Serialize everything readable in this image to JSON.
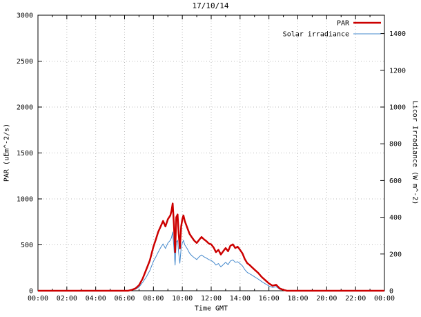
{
  "title": "17/10/14",
  "axes": {
    "x_label": "Time GMT",
    "y_left_label": "PAR (uEm^-2/s)",
    "y_right_label": "Licor Irradiance (W m^-2)",
    "x_tick_positions": [
      0,
      2,
      4,
      6,
      8,
      10,
      12,
      14,
      16,
      18,
      20,
      22,
      24
    ],
    "x_tick_labels": [
      "00:00",
      "02:00",
      "04:00",
      "06:00",
      "08:00",
      "10:00",
      "12:00",
      "14:00",
      "16:00",
      "18:00",
      "20:00",
      "22:00",
      "00:00"
    ],
    "y_left_ticks": [
      0,
      500,
      1000,
      1500,
      2000,
      2500,
      3000
    ],
    "y_right_ticks": [
      0,
      200,
      400,
      600,
      800,
      1000,
      1200,
      1400
    ]
  },
  "colors": {
    "par_line": "#cc0000",
    "solar_line": "#4488cc",
    "grid": "#bbbbbb",
    "frame": "#000000",
    "background": "#ffffff"
  },
  "chart_data": {
    "type": "line",
    "title": "17/10/14",
    "xlabel": "Time GMT",
    "ylabel": "PAR (uEm^-2/s)",
    "y2label": "Licor Irradiance (W m^-2)",
    "xlim": [
      0,
      24
    ],
    "ylim": [
      0,
      3000
    ],
    "y2lim": [
      0,
      1500
    ],
    "grid": true,
    "legend_position": "top-right",
    "x": [
      0,
      2,
      4,
      5,
      6,
      6.25,
      6.5,
      6.75,
      7,
      7.25,
      7.5,
      7.75,
      8,
      8.17,
      8.33,
      8.5,
      8.67,
      8.83,
      9,
      9.17,
      9.25,
      9.33,
      9.42,
      9.5,
      9.58,
      9.67,
      9.75,
      9.83,
      9.92,
      10,
      10.08,
      10.17,
      10.33,
      10.5,
      10.67,
      10.83,
      11,
      11.17,
      11.33,
      11.5,
      11.67,
      11.83,
      12,
      12.17,
      12.33,
      12.5,
      12.67,
      12.83,
      13,
      13.17,
      13.33,
      13.5,
      13.67,
      13.83,
      14,
      14.17,
      14.33,
      14.5,
      14.67,
      14.83,
      15,
      15.25,
      15.5,
      15.75,
      16,
      16.25,
      16.5,
      16.75,
      17,
      17.25,
      17.5,
      18,
      20,
      22,
      24
    ],
    "series": [
      {
        "name": "PAR",
        "axis": "left",
        "color": "#cc0000",
        "line_width": 2.5,
        "values": [
          0,
          0,
          0,
          0,
          0,
          0,
          10,
          25,
          60,
          130,
          230,
          330,
          480,
          560,
          640,
          700,
          760,
          700,
          780,
          820,
          870,
          950,
          720,
          420,
          800,
          830,
          620,
          460,
          700,
          780,
          820,
          760,
          690,
          620,
          580,
          545,
          520,
          555,
          585,
          560,
          540,
          515,
          505,
          470,
          420,
          445,
          395,
          430,
          465,
          430,
          490,
          505,
          465,
          480,
          445,
          405,
          345,
          300,
          280,
          255,
          230,
          195,
          150,
          115,
          80,
          55,
          65,
          25,
          10,
          0,
          0,
          0,
          0,
          0,
          0
        ]
      },
      {
        "name": "Solar irradiance",
        "axis": "right",
        "color": "#4488cc",
        "line_width": 1,
        "values": [
          0,
          0,
          0,
          0,
          0,
          0,
          3,
          8,
          20,
          45,
          75,
          110,
          160,
          185,
          210,
          235,
          255,
          230,
          260,
          275,
          290,
          320,
          235,
          140,
          265,
          275,
          205,
          150,
          235,
          260,
          275,
          250,
          230,
          205,
          190,
          180,
          170,
          185,
          195,
          185,
          178,
          170,
          165,
          155,
          140,
          148,
          130,
          142,
          155,
          142,
          162,
          168,
          155,
          158,
          148,
          135,
          115,
          100,
          92,
          85,
          76,
          64,
          50,
          38,
          26,
          18,
          22,
          8,
          3,
          0,
          0,
          0,
          0,
          0,
          0
        ]
      }
    ]
  }
}
